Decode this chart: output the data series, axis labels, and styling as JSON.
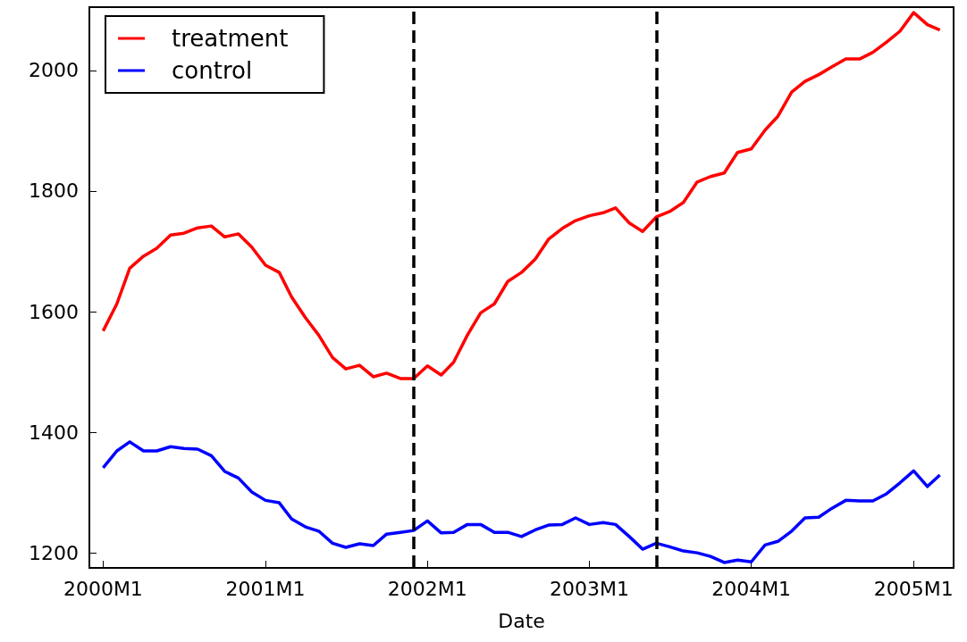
{
  "chart_data": {
    "type": "line",
    "xlabel": "Date",
    "x": [
      "2000-01",
      "2000-02",
      "2000-03",
      "2000-04",
      "2000-05",
      "2000-06",
      "2000-07",
      "2000-08",
      "2000-09",
      "2000-10",
      "2000-11",
      "2000-12",
      "2001-01",
      "2001-02",
      "2001-03",
      "2001-04",
      "2001-05",
      "2001-06",
      "2001-07",
      "2001-08",
      "2001-09",
      "2001-10",
      "2001-11",
      "2001-12",
      "2002-01",
      "2002-02",
      "2002-03",
      "2002-04",
      "2002-05",
      "2002-06",
      "2002-07",
      "2002-08",
      "2002-09",
      "2002-10",
      "2002-11",
      "2002-12",
      "2003-01",
      "2003-02",
      "2003-03",
      "2003-04",
      "2003-05",
      "2003-06",
      "2003-07",
      "2003-08",
      "2003-09",
      "2003-10",
      "2003-11",
      "2003-12",
      "2004-01",
      "2004-02",
      "2004-03",
      "2004-04",
      "2004-05",
      "2004-06",
      "2004-07",
      "2004-08",
      "2004-09",
      "2004-10",
      "2004-11",
      "2004-12",
      "2005-01",
      "2005-02",
      "2005-03"
    ],
    "series": [
      {
        "name": "treatment",
        "color": "#ff0000",
        "values": [
          1568,
          1613,
          1672,
          1692,
          1705,
          1727,
          1730,
          1739,
          1742,
          1724,
          1729,
          1707,
          1677,
          1665,
          1624,
          1590,
          1561,
          1524,
          1505,
          1511,
          1492,
          1498,
          1489,
          1489,
          1510,
          1495,
          1516,
          1561,
          1598,
          1613,
          1650,
          1665,
          1687,
          1720,
          1738,
          1751,
          1759,
          1764,
          1772,
          1747,
          1733,
          1757,
          1766,
          1781,
          1815,
          1824,
          1830,
          1864,
          1870,
          1901,
          1924,
          1964,
          1982,
          1993,
          2006,
          2019,
          2019,
          2030,
          2047,
          2065,
          2096,
          2076,
          2067
        ]
      },
      {
        "name": "control",
        "color": "#0000ff",
        "values": [
          1341,
          1369,
          1384,
          1369,
          1369,
          1376,
          1373,
          1372,
          1361,
          1335,
          1324,
          1301,
          1287,
          1283,
          1256,
          1243,
          1236,
          1216,
          1209,
          1215,
          1212,
          1231,
          1234,
          1237,
          1253,
          1233,
          1234,
          1247,
          1247,
          1234,
          1234,
          1227,
          1238,
          1246,
          1247,
          1258,
          1247,
          1250,
          1247,
          1227,
          1206,
          1216,
          1210,
          1203,
          1200,
          1194,
          1184,
          1188,
          1185,
          1213,
          1219,
          1236,
          1258,
          1259,
          1274,
          1287,
          1286,
          1286,
          1298,
          1316,
          1336,
          1310,
          1329
        ]
      }
    ],
    "xlim": [
      "1999-12",
      "2005-04"
    ],
    "xticks": [
      {
        "value": "2000-01",
        "label": "2000M1"
      },
      {
        "value": "2001-01",
        "label": "2001M1"
      },
      {
        "value": "2002-01",
        "label": "2002M1"
      },
      {
        "value": "2003-01",
        "label": "2003M1"
      },
      {
        "value": "2004-01",
        "label": "2004M1"
      },
      {
        "value": "2005-01",
        "label": "2005M1"
      }
    ],
    "ylim": [
      1175,
      2105
    ],
    "yticks": [
      1200,
      1400,
      1600,
      1800,
      2000
    ],
    "ref_lines": [
      {
        "axis": "x",
        "value": "2001-12",
        "color": "#000000",
        "line_style": "dashed"
      },
      {
        "axis": "x",
        "value": "2003-06",
        "color": "#000000",
        "line_style": "dashed"
      }
    ],
    "grid": false,
    "legend": "top left",
    "line_style": "solid",
    "marker": "none"
  }
}
